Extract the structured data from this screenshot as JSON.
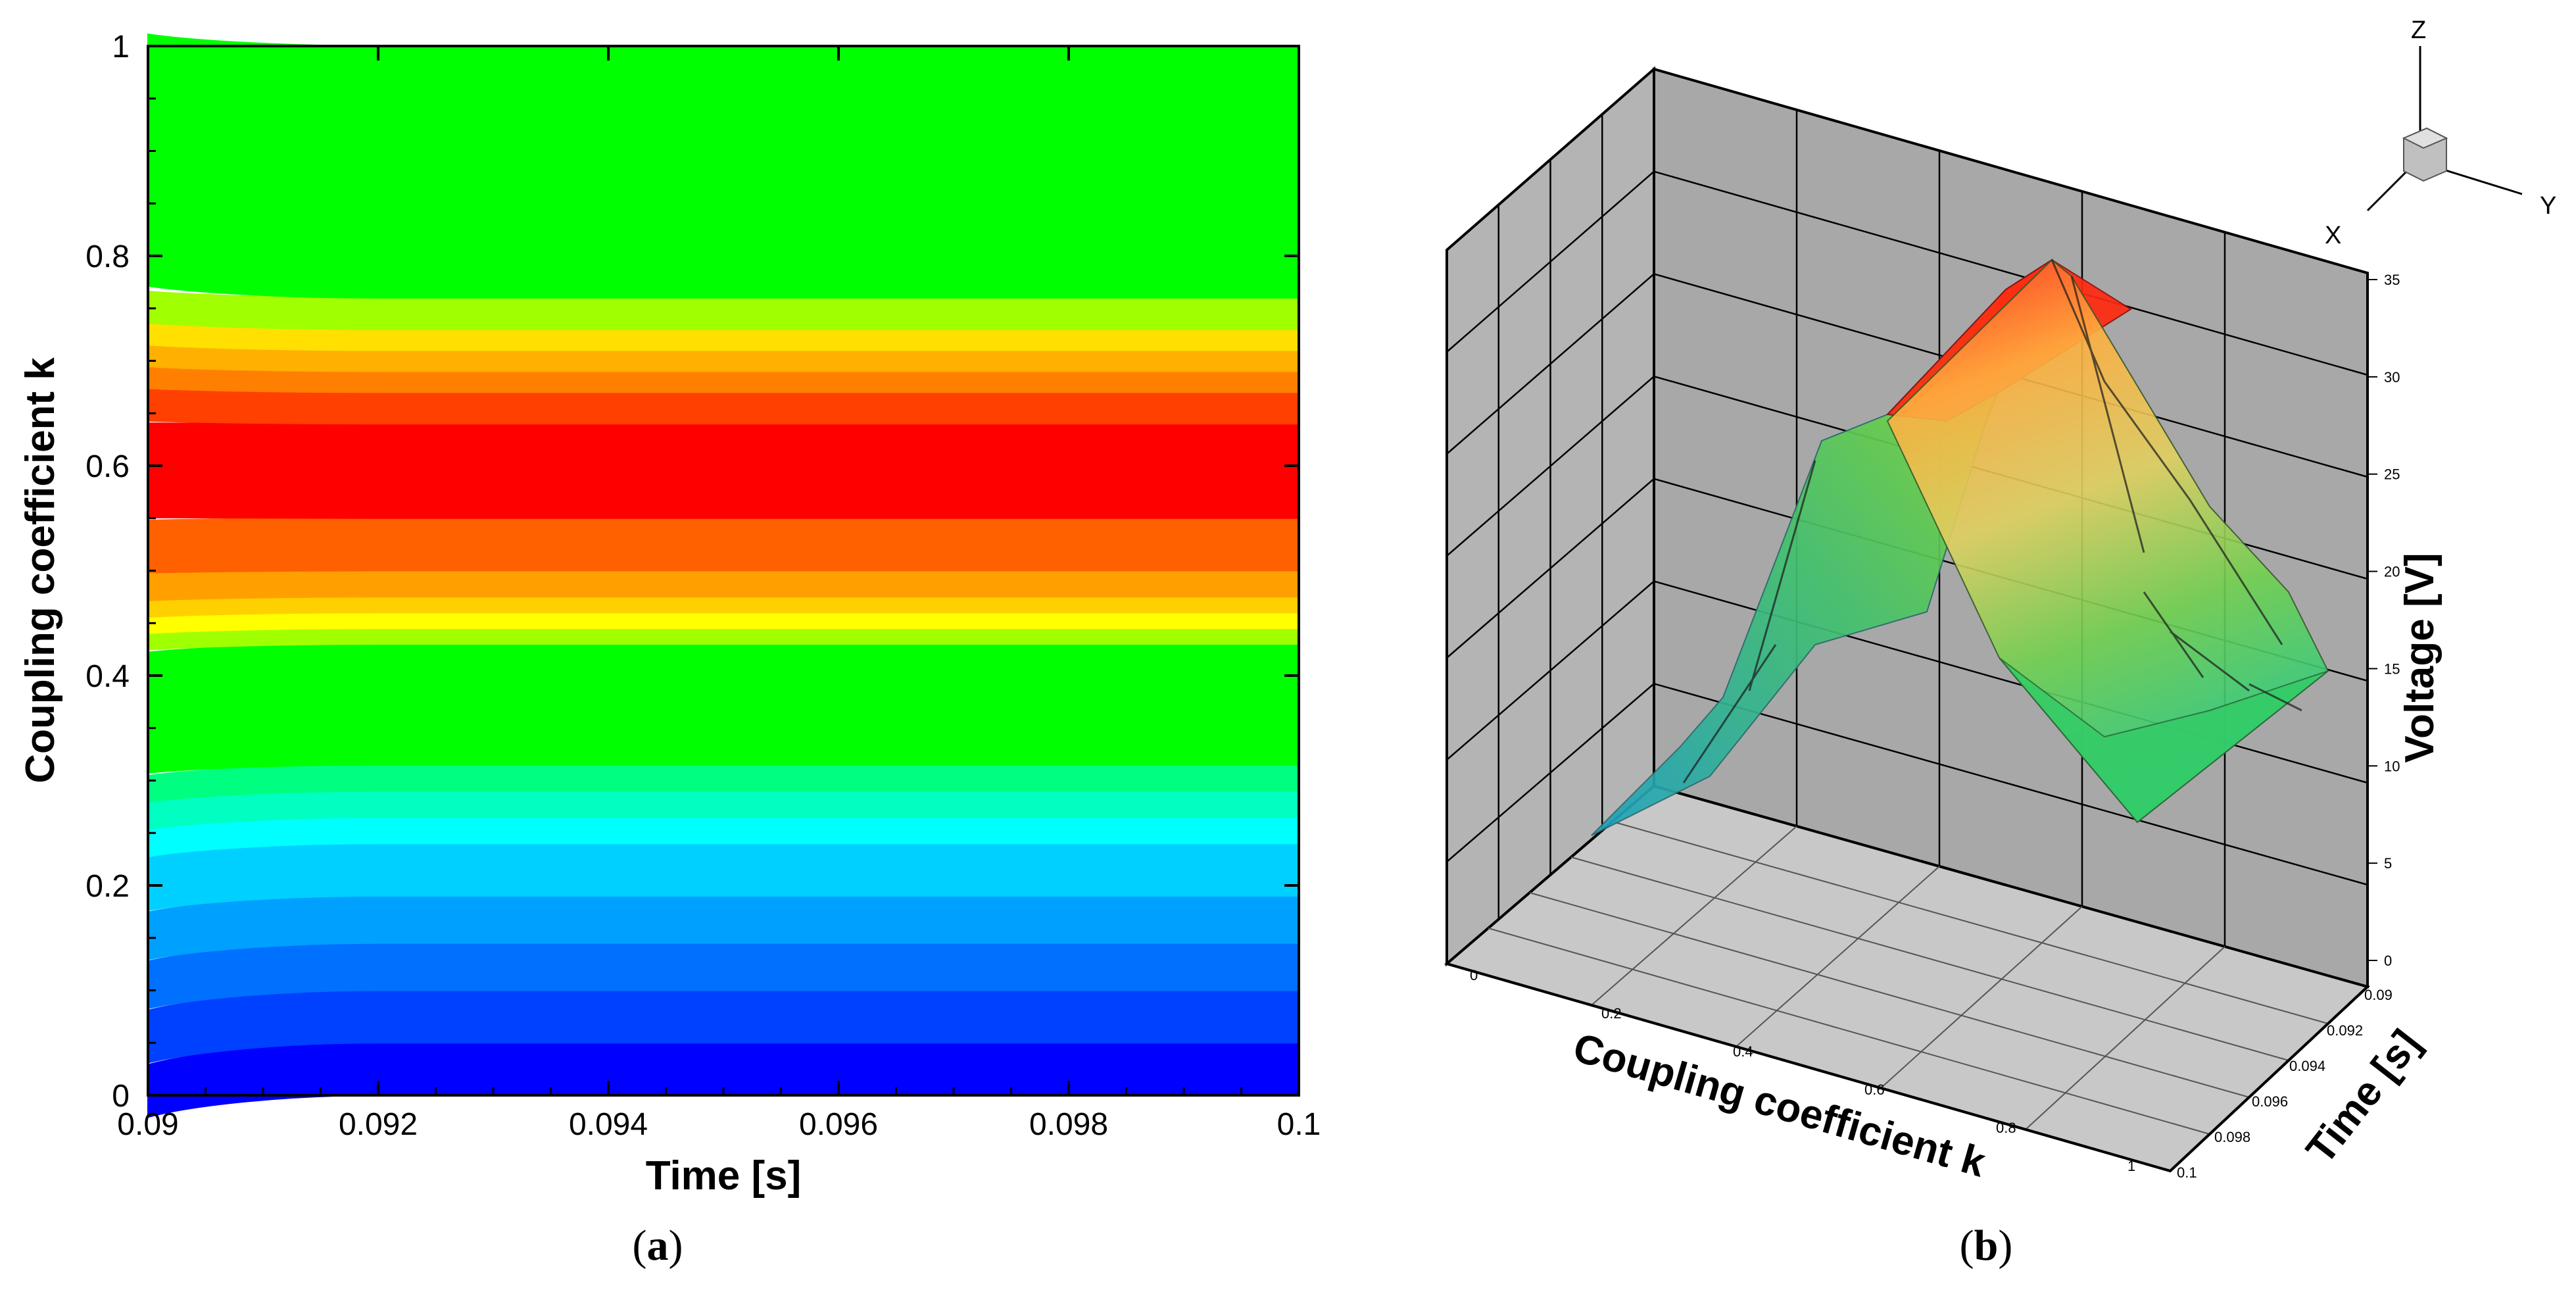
{
  "chart_data": [
    {
      "type": "heatmap",
      "panel_label": "a",
      "xlabel": "Time [s]",
      "ylabel": "Coupling coefficient k",
      "xlim": [
        0.09,
        0.1
      ],
      "ylim": [
        0,
        1
      ],
      "xticks": [
        "0.09",
        "0.092",
        "0.094",
        "0.096",
        "0.098",
        "0.1"
      ],
      "yticks": [
        "0",
        "0.2",
        "0.4",
        "0.6",
        "0.8",
        "1"
      ],
      "bands": [
        {
          "from": 0.0,
          "to": 0.05,
          "color": "#0000ff"
        },
        {
          "from": 0.05,
          "to": 0.1,
          "color": "#0040ff"
        },
        {
          "from": 0.1,
          "to": 0.145,
          "color": "#0070ff"
        },
        {
          "from": 0.145,
          "to": 0.19,
          "color": "#00a0ff"
        },
        {
          "from": 0.19,
          "to": 0.24,
          "color": "#00d0ff"
        },
        {
          "from": 0.24,
          "to": 0.265,
          "color": "#00ffff"
        },
        {
          "from": 0.265,
          "to": 0.29,
          "color": "#00ffc0"
        },
        {
          "from": 0.29,
          "to": 0.315,
          "color": "#00ff80"
        },
        {
          "from": 0.315,
          "to": 0.43,
          "color": "#00ff00"
        },
        {
          "from": 0.43,
          "to": 0.445,
          "color": "#a0ff00"
        },
        {
          "from": 0.445,
          "to": 0.46,
          "color": "#ffff00"
        },
        {
          "from": 0.46,
          "to": 0.475,
          "color": "#ffd000"
        },
        {
          "from": 0.475,
          "to": 0.5,
          "color": "#ffa000"
        },
        {
          "from": 0.5,
          "to": 0.55,
          "color": "#ff6000"
        },
        {
          "from": 0.55,
          "to": 0.64,
          "color": "#ff0000"
        },
        {
          "from": 0.64,
          "to": 0.67,
          "color": "#ff4000"
        },
        {
          "from": 0.67,
          "to": 0.69,
          "color": "#ff8000"
        },
        {
          "from": 0.69,
          "to": 0.71,
          "color": "#ffb000"
        },
        {
          "from": 0.71,
          "to": 0.73,
          "color": "#ffe000"
        },
        {
          "from": 0.73,
          "to": 0.76,
          "color": "#a0ff00"
        },
        {
          "from": 0.76,
          "to": 1.0,
          "color": "#00ff00"
        }
      ]
    },
    {
      "type": "surface3d",
      "panel_label": "b",
      "xlabel": "Coupling coefficient k",
      "ylabel": "Time [s]",
      "zlabel": "Voltage [V]",
      "k_ticks": [
        "0",
        "0.2",
        "0.4",
        "0.6",
        "0.8",
        "1"
      ],
      "time_ticks": [
        "0.09",
        "0.092",
        "0.094",
        "0.096",
        "0.098",
        "0.1"
      ],
      "voltage_ticks": [
        "0",
        "5",
        "10",
        "15",
        "20",
        "25",
        "30",
        "35"
      ],
      "zlim": [
        0,
        35
      ],
      "triad": {
        "x": "X",
        "y": "Y",
        "z": "Z"
      },
      "k": [
        0,
        0.1,
        0.2,
        0.3,
        0.4,
        0.5,
        0.6,
        0.7,
        0.8,
        0.9,
        1.0
      ],
      "voltage_peak_profile": [
        0,
        4,
        9,
        15,
        24,
        27,
        33,
        22,
        15,
        11,
        8
      ],
      "colors": {
        "low": "#00c0ff",
        "mid": "#30e040",
        "high": "#ff1010"
      }
    }
  ],
  "captions": [
    "a",
    "b"
  ]
}
